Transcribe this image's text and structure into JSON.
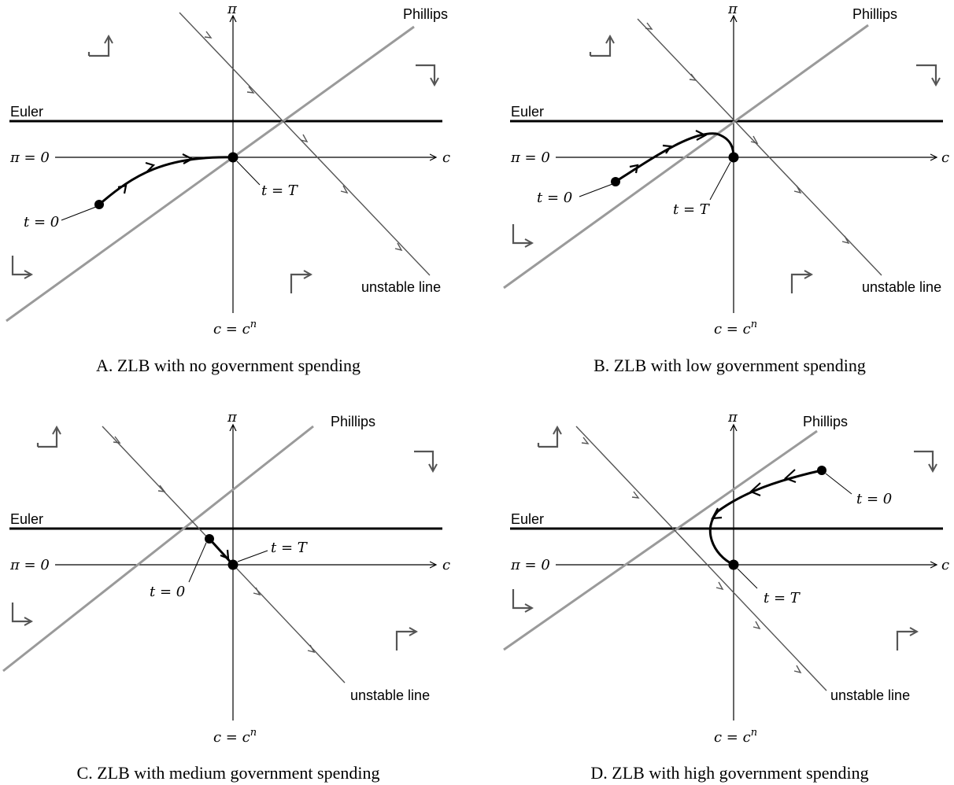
{
  "panels": [
    {
      "id": "A",
      "caption": "A. ZLB with no government spending",
      "labels": {
        "pi_axis": "π",
        "c_axis": "c",
        "phillips": "Phillips",
        "euler": "Euler",
        "pi_zero": "π = 0",
        "unstable": "unstable line",
        "cn": "c = c",
        "cn_sup": "n",
        "start": "t = 0",
        "end": "t = T"
      }
    },
    {
      "id": "B",
      "caption": "B. ZLB with low government spending",
      "labels": {
        "pi_axis": "π",
        "c_axis": "c",
        "phillips": "Phillips",
        "euler": "Euler",
        "pi_zero": "π = 0",
        "unstable": "unstable line",
        "cn": "c = c",
        "cn_sup": "n",
        "start": "t = 0",
        "end": "t = T"
      }
    },
    {
      "id": "C",
      "caption": "C. ZLB with medium government spending",
      "labels": {
        "pi_axis": "π",
        "c_axis": "c",
        "phillips": "Phillips",
        "euler": "Euler",
        "pi_zero": "π = 0",
        "unstable": "unstable line",
        "cn": "c = c",
        "cn_sup": "n",
        "start": "t = 0",
        "end": "t = T"
      }
    },
    {
      "id": "D",
      "caption": "D. ZLB with high government spending",
      "labels": {
        "pi_axis": "π",
        "c_axis": "c",
        "phillips": "Phillips",
        "euler": "Euler",
        "pi_zero": "π = 0",
        "unstable": "unstable line",
        "cn": "c = c",
        "cn_sup": "n",
        "start": "t = 0",
        "end": "t = T"
      }
    }
  ],
  "colors": {
    "euler": "#000000",
    "phillips": "#9a9a9a",
    "unstable": "#555555",
    "trajectory": "#000000",
    "direction_arrows": "#555555"
  }
}
